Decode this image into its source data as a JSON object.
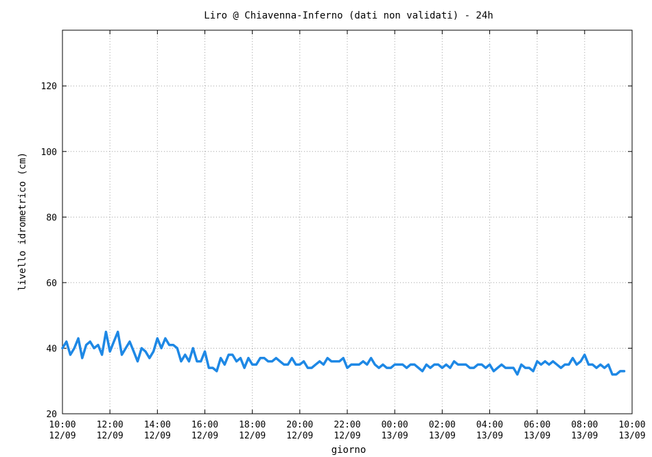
{
  "chart_data": {
    "type": "line",
    "title": "Liro @ Chiavenna-Inferno (dati non validati) - 24h",
    "xlabel": "giorno",
    "ylabel": "livello idrometrico (cm)",
    "ylim": [
      20,
      137
    ],
    "xlim": [
      0,
      24
    ],
    "grid": true,
    "y_ticks": [
      20,
      40,
      60,
      80,
      100,
      120
    ],
    "x_ticks": [
      {
        "hours": 0,
        "time": "10:00",
        "date": "12/09"
      },
      {
        "hours": 2,
        "time": "12:00",
        "date": "12/09"
      },
      {
        "hours": 4,
        "time": "14:00",
        "date": "12/09"
      },
      {
        "hours": 6,
        "time": "16:00",
        "date": "12/09"
      },
      {
        "hours": 8,
        "time": "18:00",
        "date": "12/09"
      },
      {
        "hours": 10,
        "time": "20:00",
        "date": "12/09"
      },
      {
        "hours": 12,
        "time": "22:00",
        "date": "12/09"
      },
      {
        "hours": 14,
        "time": "00:00",
        "date": "13/09"
      },
      {
        "hours": 16,
        "time": "02:00",
        "date": "13/09"
      },
      {
        "hours": 18,
        "time": "04:00",
        "date": "13/09"
      },
      {
        "hours": 20,
        "time": "06:00",
        "date": "13/09"
      },
      {
        "hours": 22,
        "time": "08:00",
        "date": "13/09"
      },
      {
        "hours": 24,
        "time": "10:00",
        "date": "13/09"
      }
    ],
    "sample_interval_minutes": 10,
    "series": [
      {
        "color": "#1e88e5",
        "values": [
          40,
          42,
          38,
          40,
          43,
          37,
          41,
          42,
          40,
          41,
          38,
          45,
          39,
          42,
          45,
          38,
          40,
          42,
          39,
          36,
          40,
          39,
          37,
          39,
          43,
          40,
          43,
          41,
          41,
          40,
          36,
          38,
          36,
          40,
          36,
          36,
          39,
          34,
          34,
          33,
          37,
          35,
          38,
          38,
          36,
          37,
          34,
          37,
          35,
          35,
          37,
          37,
          36,
          36,
          37,
          36,
          35,
          35,
          37,
          35,
          35,
          36,
          34,
          34,
          35,
          36,
          35,
          37,
          36,
          36,
          36,
          37,
          34,
          35,
          35,
          35,
          36,
          35,
          37,
          35,
          34,
          35,
          34,
          34,
          35,
          35,
          35,
          34,
          35,
          35,
          34,
          33,
          35,
          34,
          35,
          35,
          34,
          35,
          34,
          36,
          35,
          35,
          35,
          34,
          34,
          35,
          35,
          34,
          35,
          33,
          34,
          35,
          34,
          34,
          34,
          32,
          35,
          34,
          34,
          33,
          36,
          35,
          36,
          35,
          36,
          35,
          34,
          35,
          35,
          37,
          35,
          36,
          38,
          35,
          35,
          34,
          35,
          34,
          35,
          32,
          32,
          33,
          33
        ]
      }
    ]
  }
}
